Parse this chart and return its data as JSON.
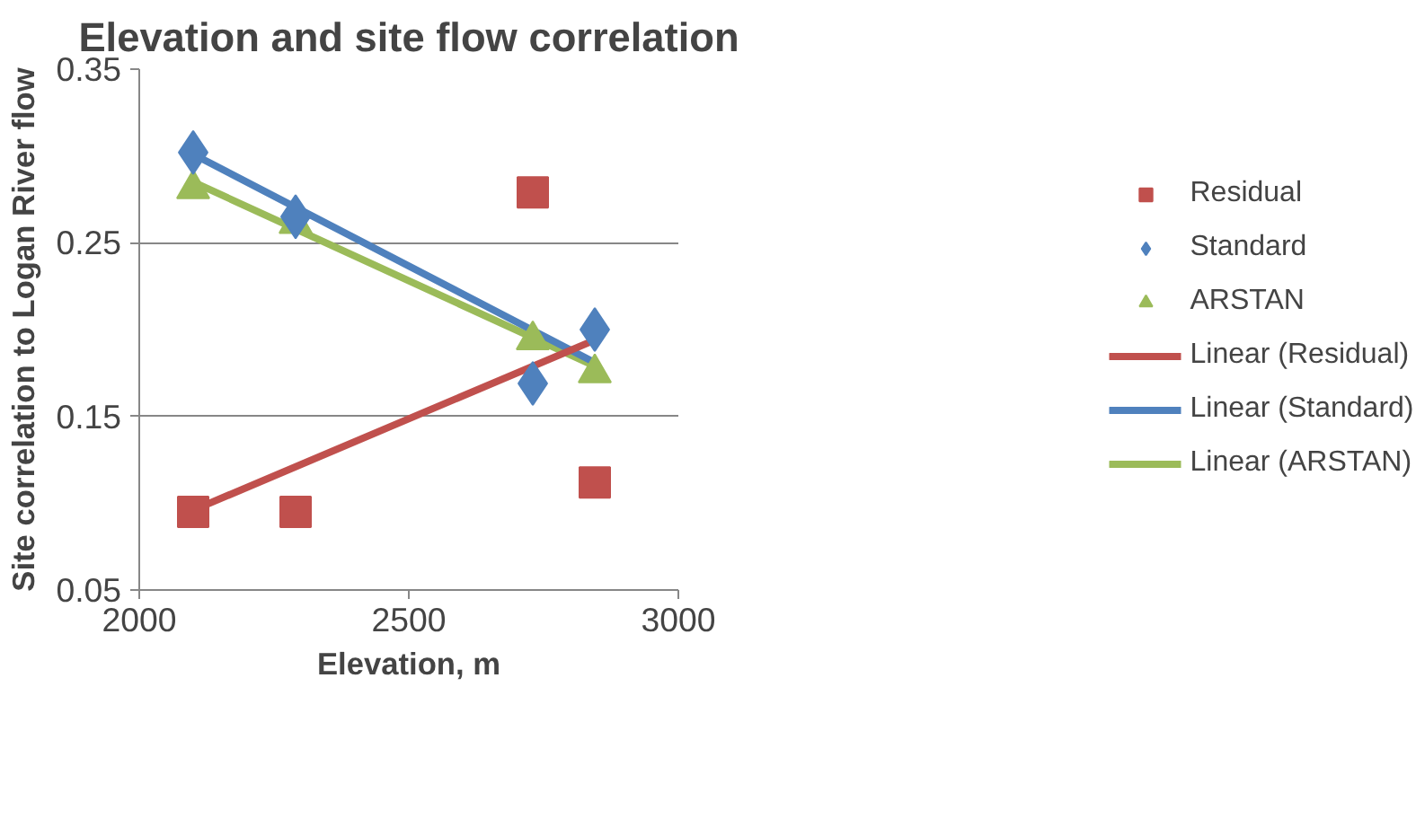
{
  "chart_data": {
    "type": "scatter",
    "title": "Elevation and site flow correlation",
    "xlabel": "Elevation, m",
    "ylabel": "Site correlation to Logan River flow",
    "xlim": [
      2000,
      3000
    ],
    "xticks": [
      2000,
      2500,
      3000
    ],
    "ylim": [
      0.05,
      0.35
    ],
    "yticks": [
      0.05,
      0.15,
      0.25,
      0.35
    ],
    "grid": "y",
    "legend": "right",
    "series": [
      {
        "name": "Residual",
        "marker": "square",
        "color": "#c0504d",
        "x": [
          2100,
          2290,
          2730,
          2845
        ],
        "values": [
          0.095,
          0.095,
          0.279,
          0.112
        ]
      },
      {
        "name": "Standard",
        "marker": "diamond",
        "color": "#4f81bd",
        "x": [
          2100,
          2290,
          2730,
          2845
        ],
        "values": [
          0.302,
          0.265,
          0.169,
          0.2
        ]
      },
      {
        "name": "ARSTAN",
        "marker": "triangle",
        "color": "#9bbb59",
        "x": [
          2100,
          2290,
          2730,
          2845
        ],
        "values": [
          0.281,
          0.261,
          0.194,
          0.175
        ]
      },
      {
        "name": "Linear (Residual)",
        "type": "line",
        "color": "#c0504d",
        "x": [
          2100,
          2845
        ],
        "values": [
          0.096,
          0.194
        ]
      },
      {
        "name": "Linear (Standard)",
        "type": "line",
        "color": "#4f81bd",
        "x": [
          2100,
          2845
        ],
        "values": [
          0.301,
          0.181
        ]
      },
      {
        "name": "Linear (ARSTAN)",
        "type": "line",
        "color": "#9bbb59",
        "x": [
          2100,
          2845
        ],
        "values": [
          0.285,
          0.179
        ]
      }
    ]
  }
}
